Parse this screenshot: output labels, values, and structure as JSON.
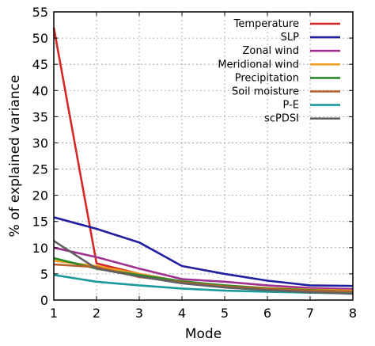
{
  "chart_data": {
    "type": "line",
    "xlabel": "Mode",
    "ylabel": "% of explained variance",
    "xlim": [
      1,
      8
    ],
    "ylim": [
      0,
      55
    ],
    "xticks": [
      1,
      2,
      3,
      4,
      5,
      6,
      7,
      8
    ],
    "yticks": [
      0,
      5,
      10,
      15,
      20,
      25,
      30,
      35,
      40,
      45,
      50,
      55
    ],
    "grid": true,
    "legend_position": "top-right",
    "x": [
      1,
      2,
      3,
      4,
      5,
      6,
      7,
      8
    ],
    "series": [
      {
        "name": "Temperature",
        "color": "#d62728",
        "values": [
          52.0,
          7.0,
          5.0,
          3.5,
          2.5,
          2.0,
          1.7,
          1.5
        ]
      },
      {
        "name": "SLP",
        "color": "#1f1fa0",
        "values": [
          15.8,
          13.6,
          11.0,
          6.5,
          5.0,
          3.7,
          2.8,
          2.7
        ]
      },
      {
        "name": "Zonal wind",
        "color": "#a03090",
        "values": [
          10.0,
          8.2,
          6.0,
          4.0,
          3.5,
          2.8,
          2.3,
          2.1
        ]
      },
      {
        "name": "Meridional wind",
        "color": "#f0a020",
        "values": [
          7.5,
          6.5,
          5.0,
          3.5,
          2.8,
          2.3,
          2.0,
          1.8
        ]
      },
      {
        "name": "Precipitation",
        "color": "#2a8a2a",
        "values": [
          8.0,
          6.0,
          4.8,
          3.6,
          2.8,
          2.2,
          1.9,
          1.6
        ]
      },
      {
        "name": "Soil moisture",
        "color": "#b8602a",
        "values": [
          6.8,
          6.3,
          4.4,
          3.4,
          2.6,
          2.1,
          1.8,
          1.6
        ]
      },
      {
        "name": "P-E",
        "color": "#1a9a9a",
        "values": [
          4.8,
          3.5,
          2.8,
          2.2,
          1.8,
          1.6,
          1.4,
          1.3
        ]
      },
      {
        "name": "scPDSI",
        "color": "#606060",
        "values": [
          11.3,
          6.0,
          4.5,
          3.2,
          2.4,
          1.9,
          1.5,
          1.2
        ]
      }
    ]
  }
}
